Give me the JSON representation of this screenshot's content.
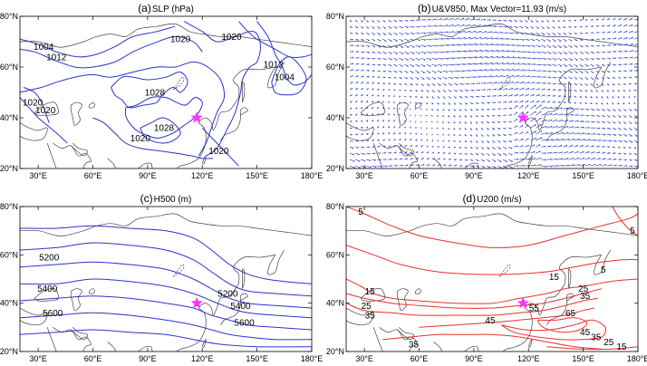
{
  "chart_data": [
    {
      "type": "contour",
      "panel_label": "(a)",
      "title": "SLP (hPa)",
      "variable": "SLP",
      "units": "hPa",
      "contour_color": "#2b35c8",
      "x_ticks": [
        "30°E",
        "60°E",
        "90°E",
        "120°E",
        "150°E",
        "180°E"
      ],
      "y_ticks": [
        "20°N",
        "40°N",
        "60°N",
        "80°N"
      ],
      "xlim": [
        20,
        180
      ],
      "ylim": [
        20,
        80
      ],
      "contour_labels": [
        {
          "text": "1004",
          "lon": 33,
          "lat": 68
        },
        {
          "text": "1012",
          "lon": 40,
          "lat": 64
        },
        {
          "text": "1020",
          "lon": 108,
          "lat": 71
        },
        {
          "text": "1020",
          "lon": 136,
          "lat": 72
        },
        {
          "text": "1028",
          "lon": 94,
          "lat": 50
        },
        {
          "text": "1020",
          "lon": 27,
          "lat": 46
        },
        {
          "text": "1020",
          "lon": 34,
          "lat": 43
        },
        {
          "text": "1028",
          "lon": 99,
          "lat": 36
        },
        {
          "text": "1020",
          "lon": 86,
          "lat": 32
        },
        {
          "text": "1020",
          "lon": 129,
          "lat": 27
        },
        {
          "text": "1012",
          "lon": 159,
          "lat": 61
        },
        {
          "text": "1004",
          "lon": 165,
          "lat": 56
        }
      ],
      "marker": {
        "type": "star",
        "color": "#ff33ff",
        "lon": 117,
        "lat": 40
      }
    },
    {
      "type": "vector",
      "panel_label": "(b)",
      "title": "U&V850, Max Vector=11.93 (m/s)",
      "variable": "U&V850",
      "max_vector": 11.93,
      "units": "m/s",
      "vector_color": "#2b35c8",
      "x_ticks": [
        "30°E",
        "60°E",
        "90°E",
        "120°E",
        "150°E",
        "180°E"
      ],
      "y_ticks": [
        "20°N",
        "40°N",
        "60°N",
        "80°N"
      ],
      "xlim": [
        20,
        180
      ],
      "ylim": [
        20,
        80
      ],
      "marker": {
        "type": "star",
        "color": "#ff33ff",
        "lon": 117,
        "lat": 40
      }
    },
    {
      "type": "contour",
      "panel_label": "(c)",
      "title": "H500 (m)",
      "variable": "H500",
      "units": "m",
      "contour_color": "#2b35c8",
      "x_ticks": [
        "30°E",
        "60°E",
        "90°E",
        "120°E",
        "150°E",
        "180°E"
      ],
      "y_ticks": [
        "20°N",
        "40°N",
        "60°N",
        "80°N"
      ],
      "xlim": [
        20,
        180
      ],
      "ylim": [
        20,
        80
      ],
      "contour_labels": [
        {
          "text": "5200",
          "lon": 36,
          "lat": 59
        },
        {
          "text": "5400",
          "lon": 35,
          "lat": 46
        },
        {
          "text": "5600",
          "lon": 38,
          "lat": 36
        },
        {
          "text": "5200",
          "lon": 134,
          "lat": 44
        },
        {
          "text": "5400",
          "lon": 141,
          "lat": 39
        },
        {
          "text": "5600",
          "lon": 143,
          "lat": 32
        }
      ],
      "marker": {
        "type": "star",
        "color": "#ff33ff",
        "lon": 117,
        "lat": 40
      }
    },
    {
      "type": "contour",
      "panel_label": "(d)",
      "title": "U200 (m/s)",
      "variable": "U200",
      "units": "m/s",
      "contour_color": "#e83030",
      "x_ticks": [
        "30°E",
        "60°E",
        "90°E",
        "120°E",
        "150°E",
        "180°E"
      ],
      "y_ticks": [
        "20°N",
        "40°N",
        "60°N",
        "80°N"
      ],
      "xlim": [
        20,
        180
      ],
      "ylim": [
        20,
        80
      ],
      "contour_labels": [
        {
          "text": "5",
          "lon": 28,
          "lat": 78
        },
        {
          "text": "5",
          "lon": 177,
          "lat": 70
        },
        {
          "text": "5",
          "lon": 161,
          "lat": 54
        },
        {
          "text": "15",
          "lon": 134,
          "lat": 51
        },
        {
          "text": "15",
          "lon": 33,
          "lat": 45
        },
        {
          "text": "25",
          "lon": 31,
          "lat": 39
        },
        {
          "text": "35",
          "lon": 33,
          "lat": 35
        },
        {
          "text": "25",
          "lon": 150,
          "lat": 46
        },
        {
          "text": "35",
          "lon": 151,
          "lat": 43
        },
        {
          "text": "45",
          "lon": 99,
          "lat": 33
        },
        {
          "text": "55",
          "lon": 123,
          "lat": 38
        },
        {
          "text": "65",
          "lon": 143,
          "lat": 36
        },
        {
          "text": "35",
          "lon": 57,
          "lat": 23
        },
        {
          "text": "45",
          "lon": 151,
          "lat": 28
        },
        {
          "text": "35",
          "lon": 157,
          "lat": 26
        },
        {
          "text": "25",
          "lon": 164,
          "lat": 24
        },
        {
          "text": "15",
          "lon": 171,
          "lat": 22
        }
      ],
      "marker": {
        "type": "star",
        "color": "#ff33ff",
        "lon": 117,
        "lat": 40
      }
    }
  ]
}
